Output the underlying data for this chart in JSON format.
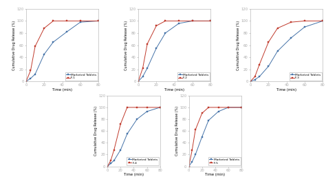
{
  "subplots": [
    {
      "label": "F-1",
      "marketed_x": [
        0,
        5,
        10,
        20,
        30,
        45,
        60,
        80
      ],
      "marketed_y": [
        0,
        5,
        12,
        45,
        65,
        82,
        98,
        100
      ],
      "formulation_x": [
        0,
        5,
        10,
        20,
        30,
        45,
        60,
        80
      ],
      "formulation_y": [
        0,
        18,
        58,
        88,
        100,
        100,
        100,
        100
      ]
    },
    {
      "label": "F-2",
      "marketed_x": [
        0,
        5,
        10,
        20,
        30,
        45,
        60,
        80
      ],
      "marketed_y": [
        0,
        8,
        22,
        55,
        80,
        96,
        100,
        100
      ],
      "formulation_x": [
        0,
        5,
        10,
        20,
        30,
        45,
        60,
        80
      ],
      "formulation_y": [
        0,
        22,
        62,
        92,
        100,
        100,
        100,
        100
      ]
    },
    {
      "label": "F-3",
      "marketed_x": [
        0,
        5,
        10,
        20,
        30,
        45,
        60,
        80
      ],
      "marketed_y": [
        0,
        3,
        8,
        25,
        50,
        72,
        90,
        100
      ],
      "formulation_x": [
        0,
        5,
        10,
        20,
        30,
        45,
        60,
        80
      ],
      "formulation_y": [
        0,
        8,
        28,
        65,
        88,
        98,
        100,
        100
      ]
    },
    {
      "label": "F-4",
      "marketed_x": [
        0,
        5,
        10,
        20,
        30,
        45,
        60,
        80
      ],
      "marketed_y": [
        0,
        5,
        10,
        28,
        55,
        80,
        93,
        100
      ],
      "formulation_x": [
        0,
        5,
        10,
        20,
        30,
        45,
        60,
        80
      ],
      "formulation_y": [
        0,
        10,
        28,
        72,
        100,
        100,
        100,
        100
      ]
    },
    {
      "label": "F-5",
      "marketed_x": [
        0,
        5,
        10,
        20,
        30,
        45,
        60,
        80
      ],
      "marketed_y": [
        0,
        8,
        20,
        50,
        78,
        93,
        100,
        100
      ],
      "formulation_x": [
        0,
        5,
        10,
        20,
        30,
        45,
        60,
        80
      ],
      "formulation_y": [
        0,
        28,
        62,
        90,
        100,
        100,
        100,
        100
      ]
    }
  ],
  "ylabel": "Cumulative Drug Release (%)",
  "xlabel": "Time (min)",
  "marketed_color": "#4472a8",
  "formulation_color": "#c0392b",
  "xlim": [
    0,
    80
  ],
  "ylim": [
    0,
    120
  ],
  "yticks": [
    0,
    20,
    40,
    60,
    80,
    100,
    120
  ],
  "xticks": [
    0,
    20,
    40,
    60,
    80
  ],
  "spine_color": "#aaaaaa",
  "tick_color": "#aaaaaa",
  "bg_color": "#ffffff"
}
